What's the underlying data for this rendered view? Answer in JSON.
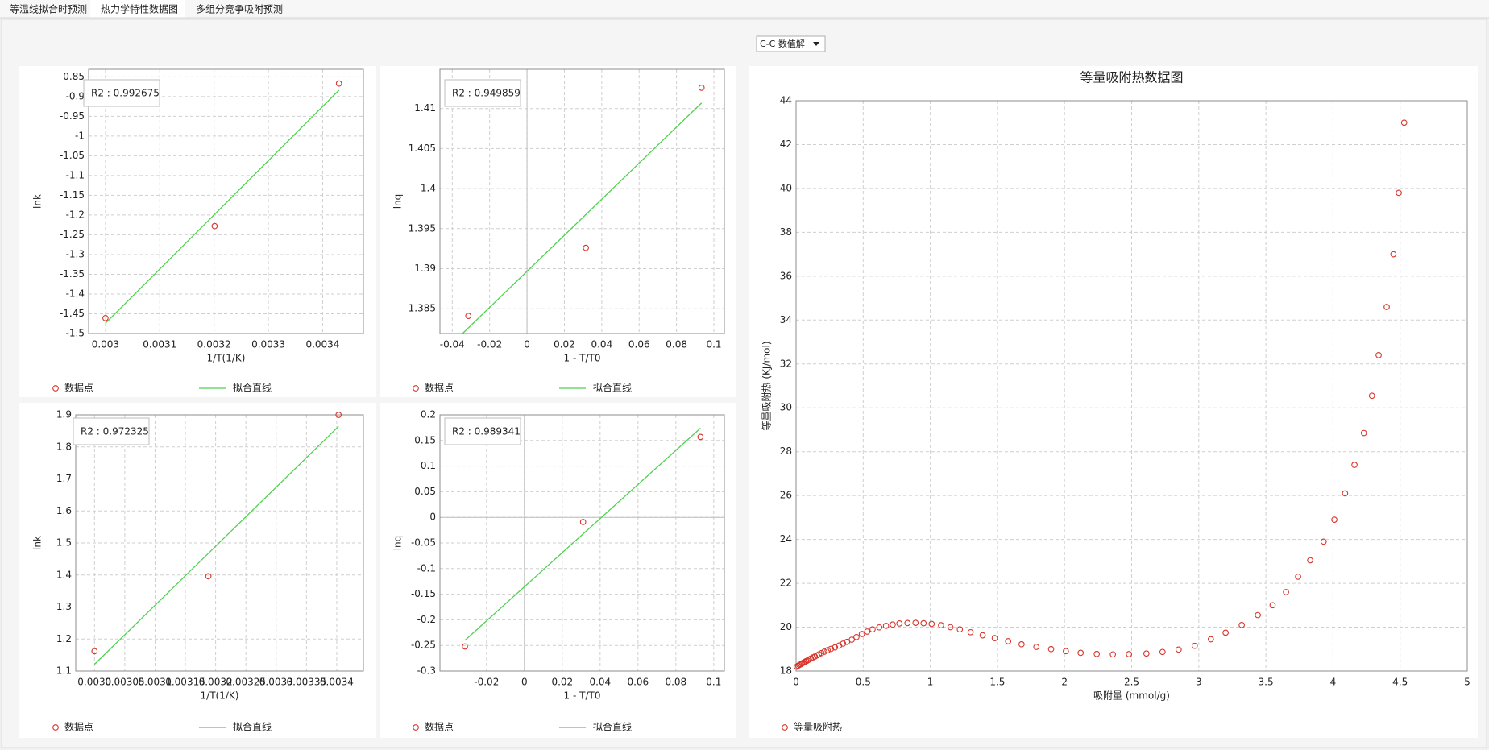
{
  "tabs": [
    "等温线拟合时预测",
    "热力学特性数据图",
    "多组分竞争吸附预测"
  ],
  "dropdown": "C-C 数值解",
  "chart_data": [
    {
      "type": "scatter",
      "annotation": "R2 : 0.992675",
      "xlabel": "1/T(1/K)",
      "ylabel": "lnk",
      "xlim": [
        0.002969,
        0.003475
      ],
      "xticks": [
        0.003,
        0.0031,
        0.0032,
        0.0033,
        0.0034
      ],
      "ylim": [
        -1.5,
        -0.831
      ],
      "yticks": [
        -1.5,
        -1.45,
        -1.4,
        -1.35,
        -1.3,
        -1.25,
        -1.2,
        -1.15,
        -1.1,
        -1.05,
        -1,
        -0.95,
        -0.9,
        -0.85
      ],
      "grid": true,
      "series": [
        {
          "name": "数据点",
          "type": "scatter",
          "color": "#d9342b",
          "x": [
            0.003,
            0.003201,
            0.00343
          ],
          "values": [
            -1.461,
            -1.228,
            -0.867
          ]
        },
        {
          "name": "拟合直线",
          "type": "line",
          "color": "#4fd14f",
          "x": [
            0.003,
            0.00343
          ],
          "values": [
            -1.474,
            -0.884
          ]
        }
      ]
    },
    {
      "type": "scatter",
      "annotation": "R2 : 0.949859",
      "xlabel": "1 - T/T0",
      "ylabel": "lnq",
      "xlim": [
        -0.0466,
        0.1056
      ],
      "xticks": [
        -0.04,
        -0.02,
        0,
        0.02,
        0.04,
        0.06,
        0.08,
        0.1
      ],
      "ylim": [
        1.3819,
        1.4149
      ],
      "yticks": [
        1.385,
        1.39,
        1.395,
        1.4,
        1.405,
        1.41
      ],
      "grid": true,
      "series": [
        {
          "name": "数据点",
          "type": "scatter",
          "color": "#d9342b",
          "x": [
            -0.0314,
            0.0315,
            0.0934
          ],
          "values": [
            1.3841,
            1.3926,
            1.4126
          ]
        },
        {
          "name": "拟合直线",
          "type": "line",
          "color": "#4fd14f",
          "x": [
            -0.0345,
            0.0934
          ],
          "values": [
            1.3819,
            1.4107
          ]
        }
      ]
    },
    {
      "type": "scatter",
      "annotation": "R2 : 0.972325",
      "xlabel": "1/T(1/K)",
      "ylabel": "lnk",
      "xlim": [
        0.002969,
        0.003444
      ],
      "xticks": [
        {
          "value": 0.003,
          "label": "0.0030"
        },
        0.00305,
        0.0031,
        0.00315,
        0.0032,
        0.00325,
        0.0033,
        0.00335,
        0.0034
      ],
      "ylim": [
        1.1,
        1.9
      ],
      "yticks": [
        1.1,
        1.2,
        1.3,
        1.4,
        1.5,
        1.6,
        1.7,
        1.8,
        1.9
      ],
      "grid": true,
      "series": [
        {
          "name": "数据点",
          "type": "scatter",
          "color": "#d9342b",
          "x": [
            0.003,
            0.003188,
            0.003403
          ],
          "values": [
            1.162,
            1.396,
            1.9
          ]
        },
        {
          "name": "拟合直线",
          "type": "line",
          "color": "#4fd14f",
          "x": [
            0.003,
            0.003403
          ],
          "values": [
            1.121,
            1.864
          ]
        }
      ]
    },
    {
      "type": "scatter",
      "annotation": "R2 : 0.989341",
      "xlabel": "1 - T/T0",
      "ylabel": "lnq",
      "xlim": [
        -0.0446,
        0.1056
      ],
      "xticks": [
        -0.02,
        0,
        0.02,
        0.04,
        0.06,
        0.08,
        0.1
      ],
      "ylim": [
        -0.3,
        0.2
      ],
      "yticks": [
        -0.3,
        -0.25,
        -0.2,
        -0.15,
        -0.1,
        -0.05,
        0,
        0.05,
        0.1,
        0.15,
        0.2
      ],
      "grid": true,
      "series": [
        {
          "name": "数据点",
          "type": "scatter",
          "color": "#d9342b",
          "x": [
            -0.0314,
            0.031,
            0.093
          ],
          "values": [
            -0.252,
            -0.009,
            0.157
          ]
        },
        {
          "name": "拟合直线",
          "type": "line",
          "color": "#4fd14f",
          "x": [
            -0.0314,
            0.093
          ],
          "values": [
            -0.24,
            0.174
          ]
        }
      ]
    },
    {
      "type": "scatter",
      "title": "等量吸附热数据图",
      "xlabel": "吸附量 (mmol/g)",
      "ylabel": "等量吸附热 (KJ/mol)",
      "xlim": [
        0,
        5
      ],
      "xticks": [
        0,
        0.5,
        1,
        1.5,
        2,
        2.5,
        3,
        3.5,
        4,
        4.5,
        5
      ],
      "ylim": [
        18,
        44
      ],
      "yticks": [
        18,
        20,
        22,
        24,
        26,
        28,
        30,
        32,
        34,
        36,
        38,
        40,
        42,
        44
      ],
      "grid": true,
      "series": [
        {
          "name": "等量吸附热",
          "type": "scatter",
          "color": "#d9342b",
          "x": [
            0.005,
            0.015,
            0.025,
            0.035,
            0.045,
            0.055,
            0.065,
            0.075,
            0.085,
            0.095,
            0.11,
            0.125,
            0.14,
            0.155,
            0.17,
            0.19,
            0.21,
            0.235,
            0.26,
            0.29,
            0.32,
            0.35,
            0.38,
            0.415,
            0.45,
            0.49,
            0.53,
            0.57,
            0.62,
            0.67,
            0.72,
            0.77,
            0.83,
            0.89,
            0.95,
            1.01,
            1.08,
            1.15,
            1.22,
            1.3,
            1.39,
            1.48,
            1.58,
            1.68,
            1.79,
            1.9,
            2.01,
            2.12,
            2.24,
            2.36,
            2.48,
            2.61,
            2.73,
            2.85,
            2.97,
            3.09,
            3.2,
            3.32,
            3.44,
            3.55,
            3.65,
            3.74,
            3.83,
            3.93,
            4.01,
            4.09,
            4.16,
            4.23,
            4.29,
            4.34,
            4.4,
            4.45,
            4.49,
            4.53
          ],
          "values": [
            18.2,
            18.24,
            18.28,
            18.31,
            18.35,
            18.38,
            18.42,
            18.45,
            18.48,
            18.52,
            18.57,
            18.62,
            18.66,
            18.71,
            18.76,
            18.82,
            18.88,
            18.95,
            19.01,
            19.08,
            19.16,
            19.25,
            19.33,
            19.43,
            19.55,
            19.69,
            19.8,
            19.9,
            19.99,
            20.06,
            20.12,
            20.17,
            20.19,
            20.2,
            20.18,
            20.15,
            20.09,
            20.0,
            19.9,
            19.77,
            19.63,
            19.5,
            19.36,
            19.22,
            19.1,
            19.0,
            18.91,
            18.83,
            18.78,
            18.76,
            18.77,
            18.8,
            18.87,
            18.98,
            19.15,
            19.45,
            19.75,
            20.1,
            20.55,
            21.0,
            21.6,
            22.3,
            23.05,
            23.9,
            24.9,
            26.1,
            27.4,
            28.85,
            30.55,
            32.4,
            34.6,
            37.0,
            39.8,
            43.0
          ]
        }
      ]
    }
  ]
}
